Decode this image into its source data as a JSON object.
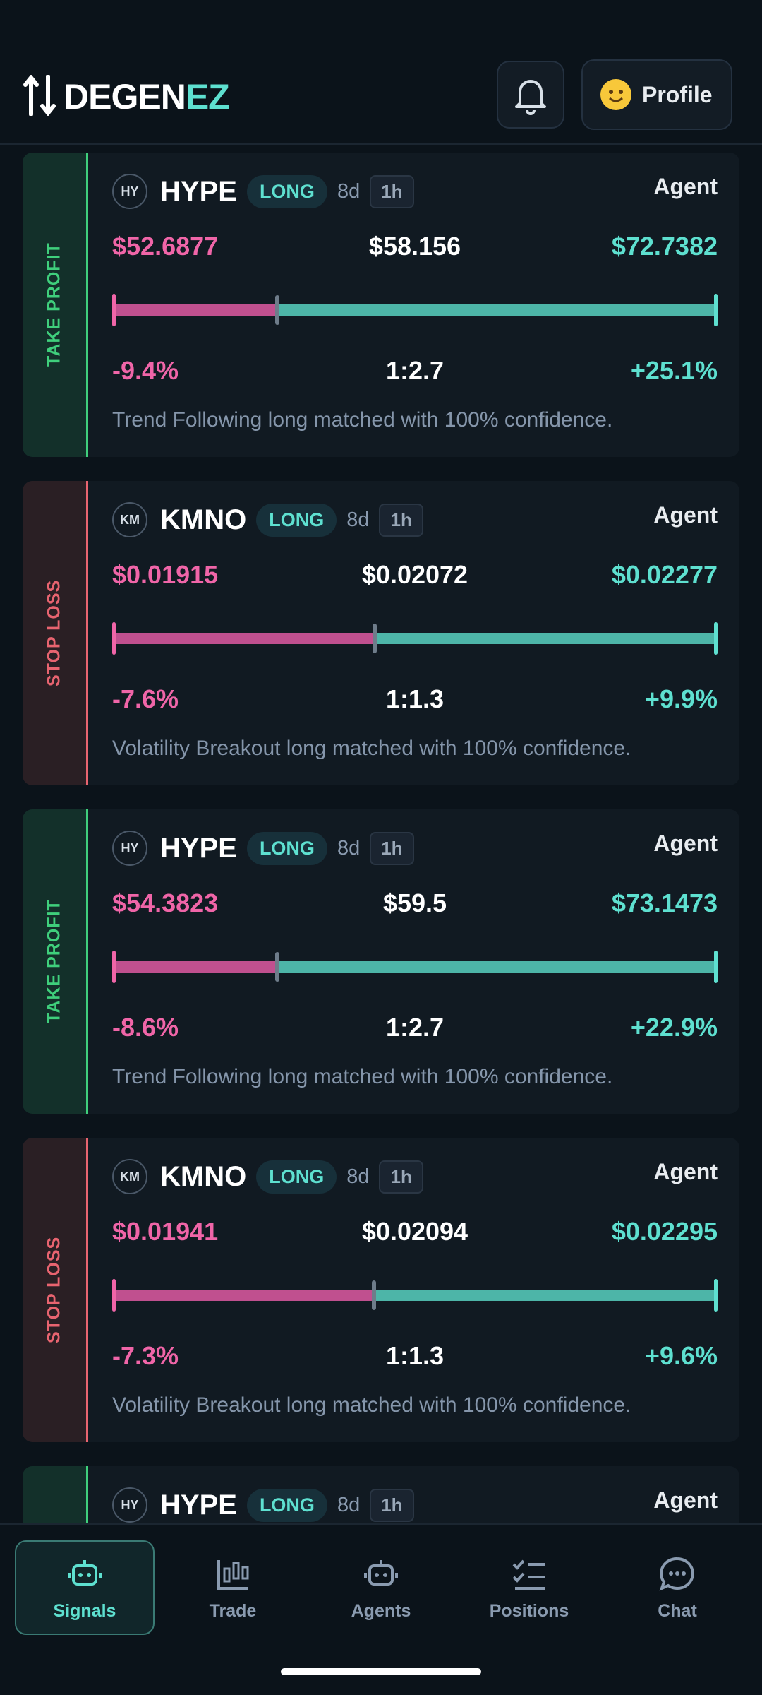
{
  "header": {
    "logo_main": "DEGEN",
    "logo_accent": "EZ",
    "profile_label": "Profile"
  },
  "cards": [
    {
      "status": "TAKE PROFIT",
      "kind": "tp",
      "avatar": "HY",
      "ticker": "HYPE",
      "side": "LONG",
      "age": "8d",
      "timeframe": "1h",
      "source": "Agent",
      "stop_loss": "$52.6877",
      "entry": "$58.156",
      "take_profit": "$72.7382",
      "loss_pct": "-9.4%",
      "ratio": "1:2.7",
      "gain_pct": "+25.1%",
      "description": "Trend Following long matched with 100% confidence."
    },
    {
      "status": "STOP LOSS",
      "kind": "sl",
      "avatar": "KM",
      "ticker": "KMNO",
      "side": "LONG",
      "age": "8d",
      "timeframe": "1h",
      "source": "Agent",
      "stop_loss": "$0.01915",
      "entry": "$0.02072",
      "take_profit": "$0.02277",
      "loss_pct": "-7.6%",
      "ratio": "1:1.3",
      "gain_pct": "+9.9%",
      "description": "Volatility Breakout long matched with 100% confidence."
    },
    {
      "status": "TAKE PROFIT",
      "kind": "tp",
      "avatar": "HY",
      "ticker": "HYPE",
      "side": "LONG",
      "age": "8d",
      "timeframe": "1h",
      "source": "Agent",
      "stop_loss": "$54.3823",
      "entry": "$59.5",
      "take_profit": "$73.1473",
      "loss_pct": "-8.6%",
      "ratio": "1:2.7",
      "gain_pct": "+22.9%",
      "description": "Trend Following long matched with 100% confidence."
    },
    {
      "status": "STOP LOSS",
      "kind": "sl",
      "avatar": "KM",
      "ticker": "KMNO",
      "side": "LONG",
      "age": "8d",
      "timeframe": "1h",
      "source": "Agent",
      "stop_loss": "$0.01941",
      "entry": "$0.02094",
      "take_profit": "$0.02295",
      "loss_pct": "-7.3%",
      "ratio": "1:1.3",
      "gain_pct": "+9.6%",
      "description": "Volatility Breakout long matched with 100% confidence."
    },
    {
      "kind": "tp",
      "avatar": "HY",
      "ticker": "HYPE",
      "side": "LONG",
      "age": "8d",
      "timeframe": "1h",
      "source": "Agent"
    }
  ],
  "nav": {
    "items": [
      "Signals",
      "Trade",
      "Agents",
      "Positions",
      "Chat"
    ],
    "active": 0
  }
}
